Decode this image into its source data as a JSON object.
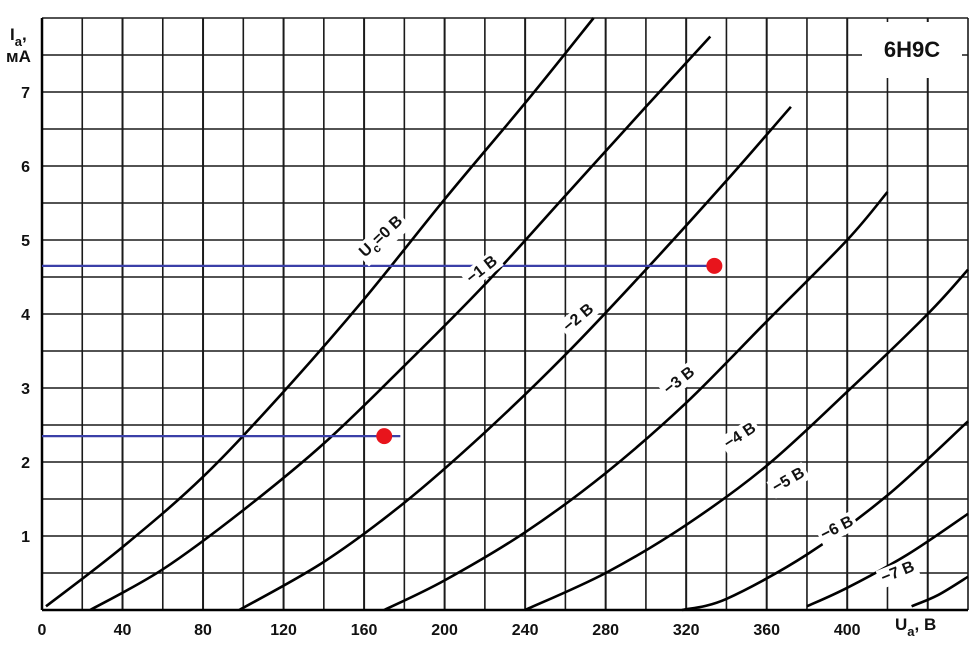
{
  "chart_data": {
    "type": "line",
    "title": "6Н9С",
    "xlabel_main": "U",
    "xlabel_sub": "a",
    "xlabel_unit": ", В",
    "ylabel_main": "I",
    "ylabel_sub": "a",
    "ylabel_unit": "мА",
    "xlim": [
      0,
      460
    ],
    "ylim": [
      0,
      8
    ],
    "x_ticks": [
      "0",
      "40",
      "80",
      "120",
      "160",
      "200",
      "240",
      "280",
      "320",
      "360",
      "400"
    ],
    "y_ticks": [
      "1",
      "2",
      "3",
      "4",
      "5",
      "6",
      "7"
    ],
    "grid": true,
    "series": [
      {
        "name": "U",
        "label_sub": "c",
        "label_rest": "=0 В",
        "points": [
          [
            2,
            0.05
          ],
          [
            40,
            0.85
          ],
          [
            80,
            1.8
          ],
          [
            120,
            2.95
          ],
          [
            160,
            4.2
          ],
          [
            200,
            5.55
          ],
          [
            240,
            6.85
          ],
          [
            274,
            8.0
          ]
        ]
      },
      {
        "name": "−1 В",
        "points": [
          [
            24,
            0.0
          ],
          [
            60,
            0.55
          ],
          [
            100,
            1.35
          ],
          [
            140,
            2.25
          ],
          [
            180,
            3.3
          ],
          [
            220,
            4.4
          ],
          [
            260,
            5.6
          ],
          [
            300,
            6.8
          ],
          [
            332,
            7.75
          ]
        ]
      },
      {
        "name": "−2 В",
        "points": [
          [
            98,
            0.0
          ],
          [
            140,
            0.65
          ],
          [
            180,
            1.45
          ],
          [
            220,
            2.4
          ],
          [
            260,
            3.45
          ],
          [
            300,
            4.6
          ],
          [
            340,
            5.8
          ],
          [
            372,
            6.8
          ]
        ]
      },
      {
        "name": "−3 В",
        "points": [
          [
            170,
            0.0
          ],
          [
            200,
            0.4
          ],
          [
            240,
            1.05
          ],
          [
            280,
            1.85
          ],
          [
            320,
            2.8
          ],
          [
            360,
            3.9
          ],
          [
            400,
            5.0
          ],
          [
            420,
            5.65
          ]
        ]
      },
      {
        "name": "−4 В",
        "points": [
          [
            240,
            0.0
          ],
          [
            280,
            0.5
          ],
          [
            320,
            1.15
          ],
          [
            360,
            1.95
          ],
          [
            400,
            2.95
          ],
          [
            440,
            4.0
          ],
          [
            460,
            4.6
          ]
        ]
      },
      {
        "name": "−5 В",
        "points": [
          [
            318,
            0.0
          ],
          [
            340,
            0.15
          ],
          [
            380,
            0.75
          ],
          [
            420,
            1.55
          ],
          [
            460,
            2.55
          ]
        ]
      },
      {
        "name": "−6 В",
        "points": [
          [
            380,
            0.05
          ],
          [
            400,
            0.3
          ],
          [
            430,
            0.75
          ],
          [
            460,
            1.3
          ]
        ]
      },
      {
        "name": "−7 В",
        "points": [
          [
            432,
            0.05
          ],
          [
            445,
            0.2
          ],
          [
            460,
            0.45
          ]
        ]
      }
    ],
    "markers": [
      {
        "x": 170,
        "y": 2.35,
        "color": "#e8141c"
      },
      {
        "x": 334,
        "y": 4.65,
        "color": "#e8141c"
      }
    ],
    "reference_lines": [
      {
        "y": 2.35,
        "x_from": 0,
        "x_to": 178,
        "color": "#3a3fa8"
      },
      {
        "y": 4.65,
        "x_from": 0,
        "x_to": 334,
        "color": "#3a3fa8"
      }
    ]
  }
}
